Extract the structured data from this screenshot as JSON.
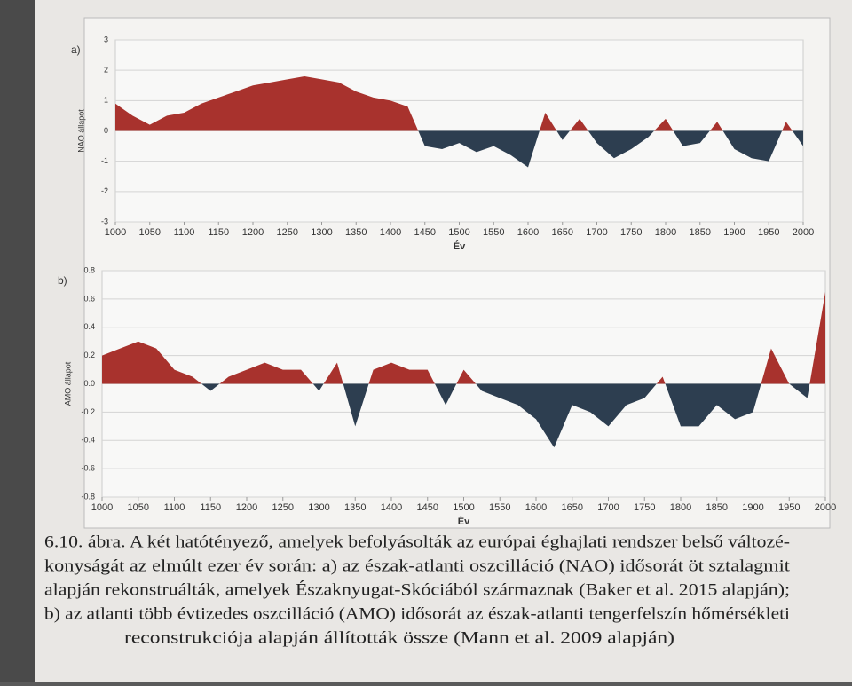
{
  "chart_data": [
    {
      "type": "area",
      "panel_label": "a)",
      "y_label": "NAO állapot",
      "x_label": "Év",
      "pos_color": "#a8322d",
      "neg_color": "#2d3e50",
      "x": [
        1000,
        1025,
        1050,
        1075,
        1100,
        1125,
        1150,
        1175,
        1200,
        1225,
        1250,
        1275,
        1300,
        1325,
        1350,
        1375,
        1400,
        1425,
        1450,
        1475,
        1500,
        1525,
        1550,
        1575,
        1600,
        1625,
        1650,
        1675,
        1700,
        1725,
        1750,
        1775,
        1800,
        1825,
        1850,
        1875,
        1900,
        1925,
        1950,
        1975,
        2000
      ],
      "values": [
        0.9,
        0.5,
        0.2,
        0.5,
        0.6,
        0.9,
        1.1,
        1.3,
        1.5,
        1.6,
        1.7,
        1.8,
        1.7,
        1.6,
        1.3,
        1.1,
        1.0,
        0.8,
        -0.5,
        -0.6,
        -0.4,
        -0.7,
        -0.5,
        -0.8,
        -1.2,
        0.6,
        -0.3,
        0.4,
        -0.4,
        -0.9,
        -0.6,
        -0.2,
        0.4,
        -0.5,
        -0.4,
        0.3,
        -0.6,
        -0.9,
        -1.0,
        0.3,
        -0.5
      ],
      "xlim": [
        1000,
        2000
      ],
      "xticks": [
        1000,
        1050,
        1100,
        1150,
        1200,
        1250,
        1300,
        1350,
        1400,
        1450,
        1500,
        1550,
        1600,
        1650,
        1700,
        1750,
        1800,
        1850,
        1900,
        1950,
        2000
      ],
      "ylim": [
        -3,
        3
      ],
      "yticks": [
        -3,
        -2,
        -1,
        0,
        1,
        2,
        3
      ],
      "grid": true
    },
    {
      "type": "area",
      "panel_label": "b)",
      "y_label": "AMO állapot",
      "x_label": "Év",
      "pos_color": "#a8322d",
      "neg_color": "#2d3e50",
      "x": [
        1000,
        1025,
        1050,
        1075,
        1100,
        1125,
        1150,
        1175,
        1200,
        1225,
        1250,
        1275,
        1300,
        1325,
        1350,
        1375,
        1400,
        1425,
        1450,
        1475,
        1500,
        1525,
        1550,
        1575,
        1600,
        1625,
        1650,
        1675,
        1700,
        1725,
        1750,
        1775,
        1800,
        1825,
        1850,
        1875,
        1900,
        1925,
        1950,
        1975,
        2000
      ],
      "values": [
        0.2,
        0.25,
        0.3,
        0.25,
        0.1,
        0.05,
        -0.05,
        0.05,
        0.1,
        0.15,
        0.1,
        0.1,
        -0.05,
        0.15,
        -0.3,
        0.1,
        0.15,
        0.1,
        0.1,
        -0.15,
        0.1,
        -0.05,
        -0.1,
        -0.15,
        -0.25,
        -0.45,
        -0.15,
        -0.2,
        -0.3,
        -0.15,
        -0.1,
        0.05,
        -0.3,
        -0.3,
        -0.15,
        -0.25,
        -0.2,
        0.25,
        0.0,
        -0.1,
        0.65
      ],
      "xlim": [
        1000,
        2000
      ],
      "xticks": [
        1000,
        1050,
        1100,
        1150,
        1200,
        1250,
        1300,
        1350,
        1400,
        1450,
        1500,
        1550,
        1600,
        1650,
        1700,
        1750,
        1800,
        1850,
        1900,
        1950,
        2000
      ],
      "ylim": [
        -0.8,
        0.8
      ],
      "yticks": [
        -0.8,
        -0.6,
        -0.4,
        -0.2,
        {
          "value": 0,
          "label": "0.0"
        },
        0.2,
        0.4,
        0.6,
        0.8
      ],
      "grid": true
    }
  ],
  "caption": {
    "lines": [
      "6.10. ábra. A két hatótényező, amelyek befolyásolták az európai éghajlati rendszer belső változé-",
      "konyságát az elmúlt ezer év során: a) az észak-atlanti oszcilláció (NAO) idősorát öt sztalagmit",
      "alapján rekonstruálták, amelyek Északnyugat-Skóciából származnak (Baker et al. 2015 alapján);",
      "b) az atlanti több évtizedes oszcilláció (AMO) idősorát az észak-atlanti tengerfelszín hőmérsékleti",
      "reconstrukciója alapján állították össze (Mann et al. 2009 alapján)"
    ]
  }
}
